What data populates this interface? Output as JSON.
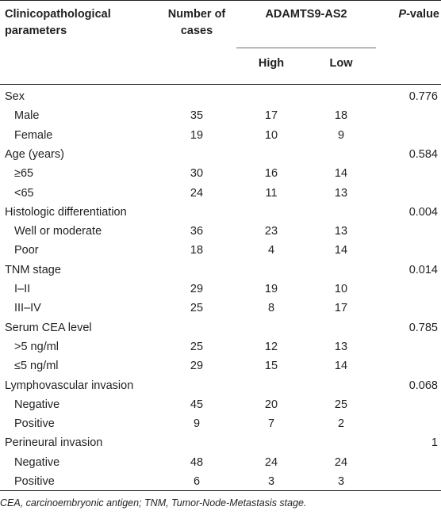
{
  "header": {
    "params": "Clinicopathological parameters",
    "cases": "Number of cases",
    "gene": "ADAMTS9-AS2",
    "p_prefix": "P",
    "p_suffix": "-value",
    "high": "High",
    "low": "Low"
  },
  "rows": [
    {
      "label": "Sex",
      "cases": "",
      "high": "",
      "low": "",
      "p": "0.776",
      "sub": false
    },
    {
      "label": "Male",
      "cases": "35",
      "high": "17",
      "low": "18",
      "p": "",
      "sub": true
    },
    {
      "label": "Female",
      "cases": "19",
      "high": "10",
      "low": "9",
      "p": "",
      "sub": true
    },
    {
      "label": "Age (years)",
      "cases": "",
      "high": "",
      "low": "",
      "p": "0.584",
      "sub": false
    },
    {
      "label": "≥65",
      "cases": "30",
      "high": "16",
      "low": "14",
      "p": "",
      "sub": true
    },
    {
      "label": "<65",
      "cases": "24",
      "high": "11",
      "low": "13",
      "p": "",
      "sub": true
    },
    {
      "label": "Histologic differentiation",
      "cases": "",
      "high": "",
      "low": "",
      "p": "0.004",
      "sub": false
    },
    {
      "label": "Well or moderate",
      "cases": "36",
      "high": "23",
      "low": "13",
      "p": "",
      "sub": true
    },
    {
      "label": "Poor",
      "cases": "18",
      "high": "4",
      "low": "14",
      "p": "",
      "sub": true
    },
    {
      "label": "TNM stage",
      "cases": "",
      "high": "",
      "low": "",
      "p": "0.014",
      "sub": false
    },
    {
      "label": "I–II",
      "cases": "29",
      "high": "19",
      "low": "10",
      "p": "",
      "sub": true
    },
    {
      "label": "III–IV",
      "cases": "25",
      "high": "8",
      "low": "17",
      "p": "",
      "sub": true
    },
    {
      "label": "Serum CEA level",
      "cases": "",
      "high": "",
      "low": "",
      "p": "0.785",
      "sub": false
    },
    {
      "label": ">5 ng/ml",
      "cases": "25",
      "high": "12",
      "low": "13",
      "p": "",
      "sub": true
    },
    {
      "label": "≤5 ng/ml",
      "cases": "29",
      "high": "15",
      "low": "14",
      "p": "",
      "sub": true
    },
    {
      "label": "Lymphovascular invasion",
      "cases": "",
      "high": "",
      "low": "",
      "p": "0.068",
      "sub": false
    },
    {
      "label": "Negative",
      "cases": "45",
      "high": "20",
      "low": "25",
      "p": "",
      "sub": true
    },
    {
      "label": "Positive",
      "cases": "9",
      "high": "7",
      "low": "2",
      "p": "",
      "sub": true
    },
    {
      "label": "Perineural invasion",
      "cases": "",
      "high": "",
      "low": "",
      "p": "1",
      "sub": false
    },
    {
      "label": "Negative",
      "cases": "48",
      "high": "24",
      "low": "24",
      "p": "",
      "sub": true
    },
    {
      "label": "Positive",
      "cases": "6",
      "high": "3",
      "low": "3",
      "p": "",
      "sub": true
    }
  ],
  "footnote": "CEA, carcinoembryonic antigen; TNM, Tumor-Node-Metastasis stage."
}
